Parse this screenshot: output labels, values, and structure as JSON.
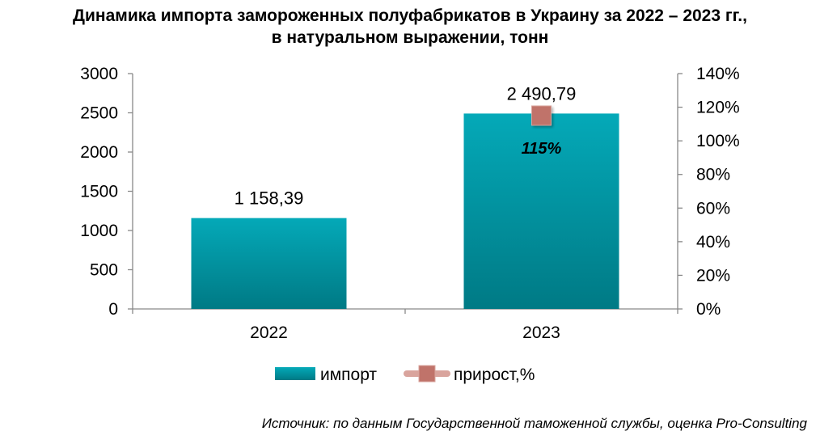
{
  "title": {
    "line1": "Динамика импорта замороженных полуфабрикатов в Украину за 2022 – 2023 гг.,",
    "line2": "в натуральном выражении, тонн"
  },
  "source": "Источник: по данным Государственной таможенной службы, оценка Pro-Consulting",
  "colors": {
    "bar_top": "#04A9B8",
    "bar_bottom": "#007A85",
    "marker": "#C0736A",
    "marker_line": "#D9A49D",
    "axis": "#898989"
  },
  "chart_data": {
    "type": "bar",
    "categories": [
      "2022",
      "2023"
    ],
    "series": [
      {
        "name": "импорт",
        "type": "bar",
        "axis": "left",
        "values": [
          1158.39,
          2490.79
        ],
        "labels": [
          "1 158,39",
          "2 490,79"
        ]
      },
      {
        "name": "прирост,%",
        "type": "line",
        "axis": "right",
        "values": [
          null,
          115
        ],
        "labels": [
          "",
          "115%"
        ]
      }
    ],
    "y_left": {
      "ylim": [
        0,
        3000
      ],
      "ticks": [
        0,
        500,
        1000,
        1500,
        2000,
        2500,
        3000
      ],
      "tick_labels": [
        "0",
        "500",
        "1000",
        "1500",
        "2000",
        "2500",
        "3000"
      ]
    },
    "y_right": {
      "ylim": [
        0,
        140
      ],
      "ticks": [
        0,
        20,
        40,
        60,
        80,
        100,
        120,
        140
      ],
      "tick_labels": [
        "0%",
        "20%",
        "40%",
        "60%",
        "80%",
        "100%",
        "120%",
        "140%"
      ]
    },
    "grid": false,
    "legend": "bottom"
  }
}
